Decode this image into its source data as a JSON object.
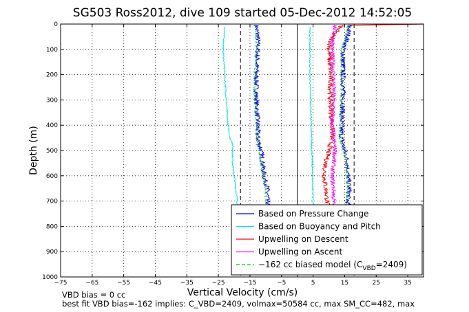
{
  "chart_data": {
    "type": "line",
    "title": "SG503 Ross2012, dive 109 started 05-Dec-2012 14:52:05",
    "xlabel": "Vertical Velocity (cm/s)",
    "ylabel": "Depth (m)",
    "xlim": [
      -75,
      40
    ],
    "ylim": [
      1000,
      0
    ],
    "y_reversed": true,
    "grid": true,
    "legend_position": "bottom-right",
    "x_ticks": [
      -75,
      -65,
      -55,
      -45,
      -35,
      -25,
      -15,
      -5,
      5,
      15,
      25,
      35
    ],
    "y_ticks": [
      0,
      100,
      200,
      300,
      400,
      500,
      600,
      700,
      800,
      900,
      1000
    ],
    "series": [
      {
        "name": "Based on Pressure Change",
        "color": "#0000ff",
        "style": "solid",
        "branches": [
          {
            "x": [
              -13,
              -12.5,
              -12.5,
              -13,
              -13,
              -12.5,
              -12.5,
              -11.5,
              -11,
              -10.5,
              -9.5,
              -9.5,
              -9
            ],
            "y": [
              5,
              50,
              100,
              200,
              300,
              400,
              450,
              500,
              550,
              600,
              650,
              700,
              750
            ]
          },
          {
            "x": [
              16.5,
              16,
              14.5,
              14.5,
              14.5,
              14,
              14,
              15,
              16,
              16,
              16.5,
              16,
              16
            ],
            "y": [
              5,
              50,
              100,
              200,
              300,
              400,
              450,
              500,
              550,
              600,
              650,
              700,
              750
            ]
          }
        ],
        "jitter": 0.8
      },
      {
        "name": "Based on Buoyancy and Pitch",
        "color": "#00e5e5",
        "style": "solid",
        "branches": [
          {
            "x": [
              -23,
              -23.5,
              -23,
              -22.5,
              -22,
              -21.5,
              -21.5,
              -20.5,
              -20.5,
              -19.5,
              -19,
              -19
            ],
            "y": [
              10,
              100,
              200,
              300,
              400,
              430,
              450,
              470,
              550,
              650,
              700,
              750
            ]
          },
          {
            "x": [
              4,
              4,
              4,
              4.2,
              4.4,
              4.6,
              4.8,
              5,
              5.2
            ],
            "y": [
              10,
              100,
              200,
              300,
              400,
              500,
              600,
              700,
              750
            ]
          }
        ],
        "jitter": 0.2
      },
      {
        "name": "Upwelling on Descent",
        "color": "#ff0000",
        "style": "solid",
        "branches": [
          {
            "x": [
              14,
              11,
              10,
              10.5,
              10.5,
              11,
              11,
              10,
              9,
              8.5,
              9,
              9.5,
              9.5
            ],
            "y": [
              5,
              50,
              100,
              200,
              300,
              400,
              450,
              500,
              550,
              600,
              650,
              700,
              750
            ]
          }
        ],
        "jitter": 0.8
      },
      {
        "name": "Upwelling on Ascent",
        "color": "#ff00ff",
        "style": "solid",
        "branches": [
          {
            "x": [
              12,
              11.5,
              11,
              11.5,
              11.5,
              11,
              11.5,
              12,
              11.5,
              11,
              11.5,
              11.5,
              11.5
            ],
            "y": [
              5,
              50,
              100,
              200,
              300,
              400,
              450,
              500,
              550,
              600,
              650,
              700,
              750
            ]
          }
        ],
        "jitter": 0.7
      },
      {
        "name": "−162 cc biased model (C",
        "name_sub": "VBD",
        "name_after": "=2409)",
        "color": "#00cc00",
        "style": "dashed",
        "branches": [
          {
            "x": [
              -13.5,
              -13,
              -13,
              -13.5,
              -13.5,
              -13,
              -13,
              -12,
              -11.5,
              -11,
              -10,
              -10,
              -9.5
            ],
            "y": [
              5,
              50,
              100,
              200,
              300,
              400,
              450,
              500,
              550,
              600,
              650,
              700,
              750
            ]
          },
          {
            "x": [
              16,
              15.5,
              14,
              14,
              14,
              13.5,
              13.5,
              14.5,
              15.5,
              15.5,
              16,
              15.5,
              15.5
            ],
            "y": [
              5,
              50,
              100,
              200,
              300,
              400,
              450,
              500,
              550,
              600,
              650,
              700,
              750
            ]
          },
          {
            "x": [
              -75,
              40
            ],
            "y": [
              0,
              0
            ]
          }
        ],
        "jitter": 0.3
      }
    ],
    "reference_lines": [
      {
        "x": 0,
        "style": "solid",
        "color": "#000000"
      },
      {
        "x": -18,
        "style": "dashed",
        "color": "#000000"
      },
      {
        "x": 18,
        "style": "dashed",
        "color": "#000000"
      }
    ],
    "surface_red": {
      "x": [
        16,
        40
      ],
      "y": [
        5,
        0
      ]
    }
  },
  "notes": {
    "line1": "VBD bias = 0 cc",
    "line2": "best fit VBD bias=-162 implies: C_VBD=2409, volmax=50584 cc, max SM_CC=482, max"
  }
}
